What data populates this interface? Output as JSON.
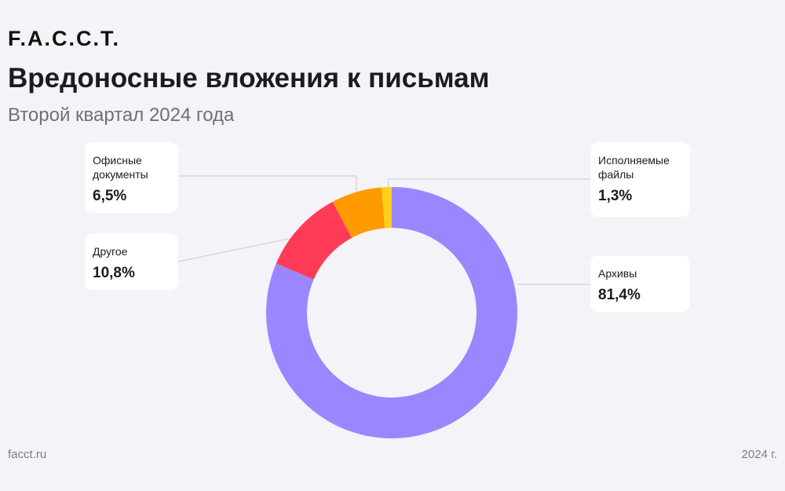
{
  "brand": {
    "logo_text": "F.A.C.C.T."
  },
  "header": {
    "title": "Вредоносные вложения к письмам",
    "subtitle": "Второй квартал 2024 года"
  },
  "footer": {
    "site": "facct.ru",
    "year": "2024 г."
  },
  "chart_data": {
    "type": "pie",
    "style": "donut",
    "title": "Вредоносные вложения к письмам",
    "subtitle": "Второй квартал 2024 года",
    "categories": [
      "Архивы",
      "Другое",
      "Офисные документы",
      "Исполняемые файлы"
    ],
    "values": [
      81.4,
      10.8,
      6.5,
      1.3
    ],
    "value_labels": [
      "81,4%",
      "10,8%",
      "6,5%",
      "1,3%"
    ],
    "colors": [
      "#9b86ff",
      "#ff3b57",
      "#ff9a00",
      "#ffcf1a"
    ],
    "start_angle_deg": 0,
    "direction": "clockwise"
  }
}
